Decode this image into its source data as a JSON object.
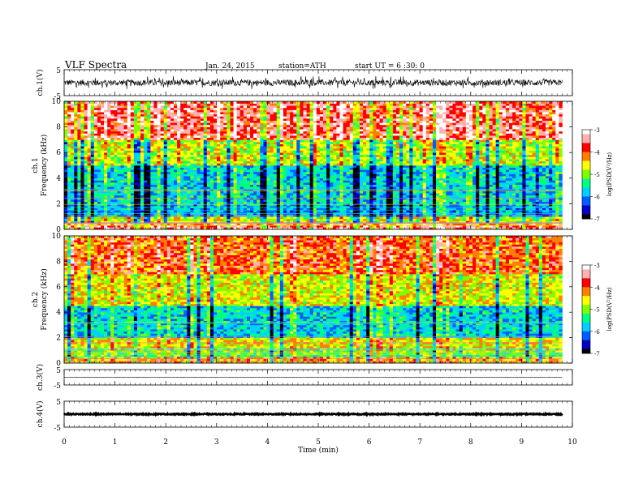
{
  "header": {
    "title": "VLF Spectra",
    "date": "Jan. 24, 2015",
    "station": "station=ATH",
    "start": "start  UT =  6 :30: 0"
  },
  "chart_data": [
    {
      "type": "line",
      "panel": "ch1-waveform",
      "ylabel": "ch.1(V)",
      "ylim": [
        -5,
        5
      ],
      "yticks": [
        "5",
        "-5"
      ],
      "xlim": [
        0,
        9.8
      ],
      "description_values": {
        "baseline": 0,
        "noise_amplitude": 1.2,
        "spike_max": 2.5
      }
    },
    {
      "type": "heatmap",
      "panel": "ch1-spectrogram",
      "ylabel_lines": [
        "ch.1",
        "Frequency  (kHz)"
      ],
      "ylim": [
        0,
        10
      ],
      "yticks": [
        "0",
        "2",
        "4",
        "6",
        "8",
        "10"
      ],
      "xlim": [
        0,
        9.8
      ],
      "colorbar": {
        "label": "log(PSD(V²/Hz)",
        "range": [
          -7,
          -3
        ],
        "ticks": [
          "-3",
          "-4",
          "-5",
          "-6",
          "-7"
        ]
      },
      "band_profile_khz": [
        {
          "f": [
            0,
            0.5
          ],
          "level": -3.6
        },
        {
          "f": [
            0.5,
            1.0
          ],
          "level": -4.8
        },
        {
          "f": [
            1.0,
            2.0
          ],
          "level": -5.9
        },
        {
          "f": [
            2.0,
            5.0
          ],
          "level": -5.7
        },
        {
          "f": [
            5.0,
            7.0
          ],
          "level": -4.8
        },
        {
          "f": [
            7.0,
            10.0
          ],
          "level": -3.6
        }
      ]
    },
    {
      "type": "heatmap",
      "panel": "ch2-spectrogram",
      "ylabel_lines": [
        "ch.2",
        "Frequency  (kHz)"
      ],
      "ylim": [
        0,
        10
      ],
      "yticks": [
        "0",
        "2",
        "4",
        "6",
        "8",
        "10"
      ],
      "xlim": [
        0,
        9.8
      ],
      "colorbar": {
        "label": "log(PSD(V²/Hz)",
        "range": [
          -7,
          -3
        ],
        "ticks": [
          "-3",
          "-4",
          "-5",
          "-6",
          "-7"
        ]
      },
      "band_profile_khz": [
        {
          "f": [
            0,
            0.5
          ],
          "level": -4.4
        },
        {
          "f": [
            0.5,
            1.0
          ],
          "level": -5.2
        },
        {
          "f": [
            1.0,
            2.0
          ],
          "level": -4.6
        },
        {
          "f": [
            2.0,
            4.5
          ],
          "level": -5.7
        },
        {
          "f": [
            4.5,
            7.0
          ],
          "level": -4.7
        },
        {
          "f": [
            7.0,
            10.0
          ],
          "level": -4.0
        }
      ]
    },
    {
      "type": "line",
      "panel": "ch3-waveform",
      "ylabel": "ch.3(V)",
      "ylim": [
        -5,
        5
      ],
      "yticks": [
        "5",
        "-5"
      ],
      "xlim": [
        0,
        9.8
      ],
      "description_values": {
        "baseline": 0,
        "noise_amplitude": 0.1
      }
    },
    {
      "type": "line",
      "panel": "ch4-waveform",
      "ylabel": "ch.4(V)",
      "ylim": [
        -5,
        5
      ],
      "yticks": [
        "5",
        "-5"
      ],
      "xlim": [
        0,
        9.8
      ],
      "description_values": {
        "baseline": 0,
        "noise_amplitude": 0.2
      }
    }
  ],
  "xaxis": {
    "label": "Time  (min)",
    "range": [
      0,
      10
    ],
    "ticks": [
      "0",
      "1",
      "2",
      "3",
      "4",
      "5",
      "6",
      "7",
      "8",
      "9",
      "10"
    ]
  },
  "colors": {
    "colormap": [
      "#000000",
      "#0000c8",
      "#0060ff",
      "#00d0ff",
      "#00ff80",
      "#80ff00",
      "#ffff00",
      "#ff8000",
      "#ff0000",
      "#ffb0b0",
      "#ffffff"
    ],
    "trace": "#000000",
    "background": "#ffffff"
  }
}
